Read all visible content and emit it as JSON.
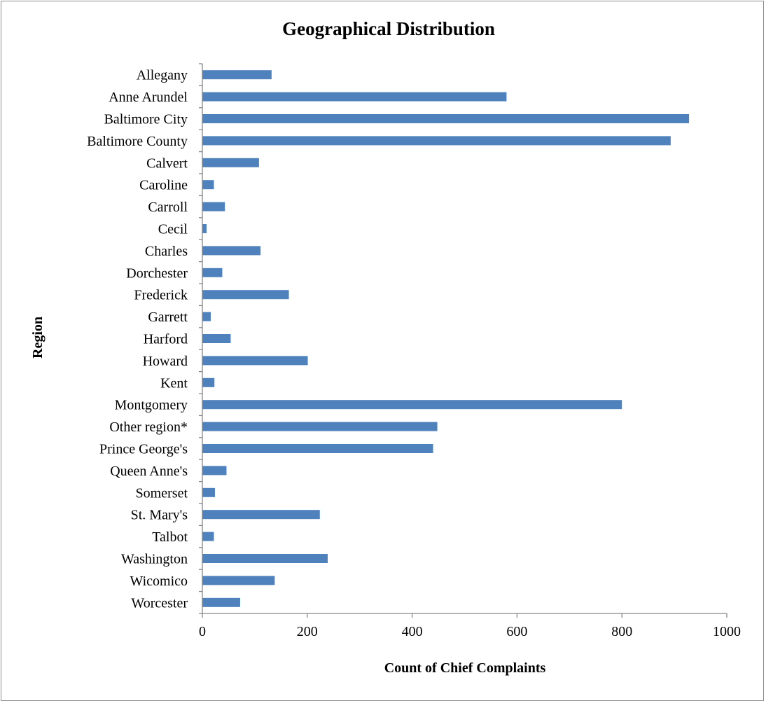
{
  "chart_data": {
    "type": "bar",
    "orientation": "horizontal",
    "title": "Geographical Distribution",
    "xlabel": "Count of Chief Complaints",
    "ylabel": "Region",
    "xlim": [
      0,
      1000
    ],
    "xticks": [
      0,
      200,
      400,
      600,
      800,
      1000
    ],
    "grid": false,
    "legend": "none",
    "bar_color": "#4f81bd",
    "categories": [
      "Allegany",
      "Anne Arundel",
      "Baltimore City",
      "Baltimore County",
      "Calvert",
      "Caroline",
      "Carroll",
      "Cecil",
      "Charles",
      "Dorchester",
      "Frederick",
      "Garrett",
      "Harford",
      "Howard",
      "Kent",
      "Montgomery",
      "Other region*",
      "Prince George's",
      "Queen Anne's",
      "Somerset",
      "St. Mary's",
      "Talbot",
      "Washington",
      "Wicomico",
      "Worcester"
    ],
    "values": [
      132,
      580,
      928,
      893,
      108,
      22,
      43,
      8,
      111,
      38,
      165,
      16,
      54,
      201,
      23,
      800,
      448,
      440,
      46,
      24,
      224,
      22,
      239,
      138,
      72
    ]
  }
}
